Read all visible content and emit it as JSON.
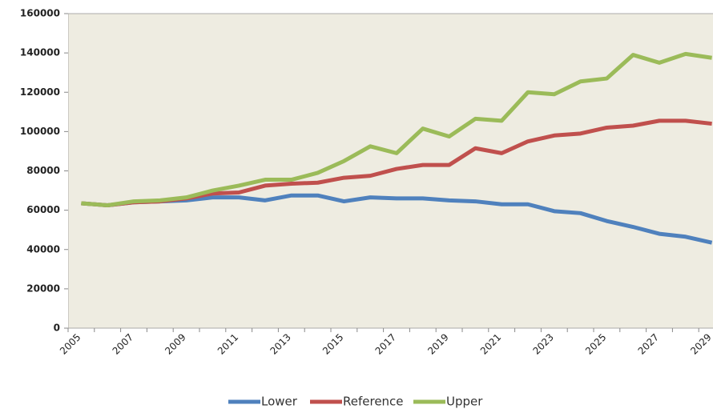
{
  "chart_data": {
    "type": "line",
    "categories": [
      "2005",
      null,
      "2007",
      null,
      "2009",
      null,
      "2011",
      null,
      "2013",
      null,
      "2015",
      null,
      "2017",
      null,
      "2019",
      null,
      "2021",
      null,
      "2023",
      null,
      "2025",
      null,
      "2027",
      null,
      "2029"
    ],
    "series": [
      {
        "name": "Lower",
        "color": "#4f81bd",
        "values": [
          63500,
          62500,
          64000,
          64500,
          65000,
          66500,
          66500,
          65000,
          67500,
          67500,
          64500,
          66500,
          66000,
          66000,
          65000,
          64500,
          63000,
          63000,
          59500,
          58500,
          54500,
          51500,
          48000,
          46500,
          43500
        ]
      },
      {
        "name": "Reference",
        "color": "#c0504d",
        "values": [
          63500,
          62500,
          64000,
          64500,
          66000,
          68500,
          69000,
          72500,
          73500,
          74000,
          76500,
          77500,
          81000,
          83000,
          83000,
          91500,
          89000,
          95000,
          98000,
          99000,
          102000,
          103000,
          105500,
          105500,
          104000
        ]
      },
      {
        "name": "Upper",
        "color": "#9bbb59",
        "values": [
          63500,
          62500,
          64500,
          65000,
          66500,
          70000,
          72500,
          75500,
          75500,
          79000,
          85000,
          92500,
          89000,
          101500,
          97500,
          106500,
          105500,
          120000,
          119000,
          125500,
          127000,
          139000,
          135000,
          139500,
          137500
        ]
      }
    ],
    "ylim": [
      0,
      160000
    ],
    "yticks": [
      0,
      20000,
      40000,
      60000,
      80000,
      100000,
      120000,
      140000,
      160000
    ],
    "plot_background": "#eeece1",
    "legend": "bottom"
  }
}
